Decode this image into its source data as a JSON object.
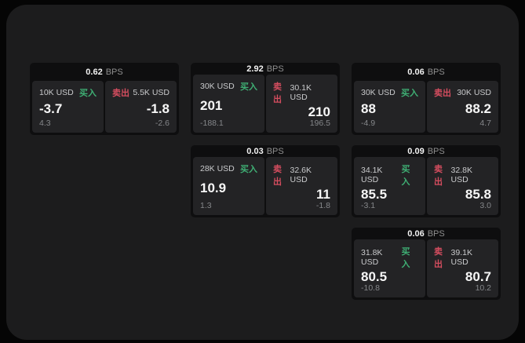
{
  "labels": {
    "bps_suffix": "BPS",
    "buy": "买入",
    "sell": "卖出"
  },
  "colors": {
    "page_bg": "#050505",
    "panel_bg": "#1c1c1d",
    "card_bg": "#0e0e0f",
    "tile_bg": "#232325",
    "buy_green": "#3faf74",
    "sell_red": "#d44d5f",
    "value_white": "#f7f7f7",
    "dim_gray": "#85878a"
  },
  "cards": [
    {
      "col": 1,
      "row": 1,
      "bps": "0.62",
      "buy": {
        "amount": "10K USD",
        "value": "-3.7",
        "sub": "4.3"
      },
      "sell": {
        "amount": "5.5K USD",
        "value": "-1.8",
        "sub": "-2.6"
      }
    },
    {
      "col": 2,
      "row": 1,
      "bps": "2.92",
      "buy": {
        "amount": "30K USD",
        "value": "201",
        "sub": "-188.1"
      },
      "sell": {
        "amount": "30.1K USD",
        "value": "210",
        "sub": "196.5"
      }
    },
    {
      "col": 3,
      "row": 1,
      "bps": "0.06",
      "buy": {
        "amount": "30K USD",
        "value": "88",
        "sub": "-4.9"
      },
      "sell": {
        "amount": "30K USD",
        "value": "88.2",
        "sub": "4.7"
      }
    },
    {
      "col": 2,
      "row": 2,
      "bps": "0.03",
      "buy": {
        "amount": "28K USD",
        "value": "10.9",
        "sub": "1.3"
      },
      "sell": {
        "amount": "32.6K USD",
        "value": "11",
        "sub": "-1.8"
      }
    },
    {
      "col": 3,
      "row": 2,
      "bps": "0.09",
      "buy": {
        "amount": "34.1K USD",
        "value": "85.5",
        "sub": "-3.1"
      },
      "sell": {
        "amount": "32.8K USD",
        "value": "85.8",
        "sub": "3.0"
      }
    },
    {
      "col": 3,
      "row": 3,
      "bps": "0.06",
      "buy": {
        "amount": "31.8K USD",
        "value": "80.5",
        "sub": "-10.8"
      },
      "sell": {
        "amount": "39.1K USD",
        "value": "80.7",
        "sub": "10.2"
      }
    }
  ]
}
